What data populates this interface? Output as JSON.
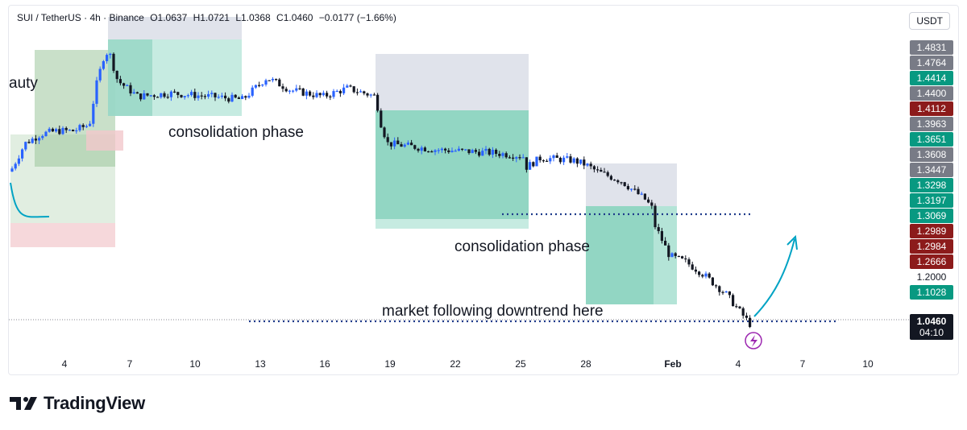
{
  "header": {
    "symbol": "SUI / TetherUS · 4h · Binance",
    "open": "O1.0637",
    "high": "H1.0721",
    "low": "L1.0368",
    "close": "C1.0460",
    "change": "−0.0177 (−1.66%)"
  },
  "currency_button": "USDT",
  "brand": {
    "name": "TradingView"
  },
  "chart_data": {
    "type": "candlestick",
    "ylim": [
      1.0,
      1.5
    ],
    "x_ticks": [
      "4",
      "7",
      "10",
      "13",
      "16",
      "19",
      "22",
      "25",
      "28",
      "Feb",
      "4",
      "7",
      "10"
    ],
    "price_labels": [
      {
        "text": "1.4831",
        "value": 1.4831,
        "color": "#787b86"
      },
      {
        "text": "1.4764",
        "value": 1.4764,
        "color": "#787b86"
      },
      {
        "text": "1.4414",
        "value": 1.4414,
        "color": "#089981"
      },
      {
        "text": "1.4400",
        "value": 1.44,
        "color": "#787b86"
      },
      {
        "text": "1.4112",
        "value": 1.4112,
        "color": "#8c1b1b"
      },
      {
        "text": "1.3963",
        "value": 1.3963,
        "color": "#787b86"
      },
      {
        "text": "1.3651",
        "value": 1.3651,
        "color": "#089981"
      },
      {
        "text": "1.3608",
        "value": 1.3608,
        "color": "#787b86"
      },
      {
        "text": "1.3447",
        "value": 1.3447,
        "color": "#787b86"
      },
      {
        "text": "1.3298",
        "value": 1.3298,
        "color": "#089981"
      },
      {
        "text": "1.3197",
        "value": 1.3197,
        "color": "#089981"
      },
      {
        "text": "1.3069",
        "value": 1.3069,
        "color": "#089981"
      },
      {
        "text": "1.2989",
        "value": 1.2989,
        "color": "#8c1b1b"
      },
      {
        "text": "1.2984",
        "value": 1.2984,
        "color": "#8c1b1b"
      },
      {
        "text": "1.2666",
        "value": 1.2666,
        "color": "#8c1b1b"
      },
      {
        "text": "1.2000",
        "value": 1.2,
        "color": "none"
      },
      {
        "text": "1.1028",
        "value": 1.1028,
        "color": "#089981"
      },
      {
        "text": "1.0460",
        "value": 1.046,
        "color": "#131722"
      }
    ],
    "countdown": "04:10",
    "annotations": [
      "auty",
      "consolidation phase",
      "consolidation phase",
      "market following downtrend here"
    ],
    "colors": {
      "up": "#2962ff",
      "down": "#131722",
      "target": "#089981",
      "stop": "#e0e3eb",
      "arrow": "#00a3c4",
      "dotted": "#1e3a8a"
    }
  }
}
